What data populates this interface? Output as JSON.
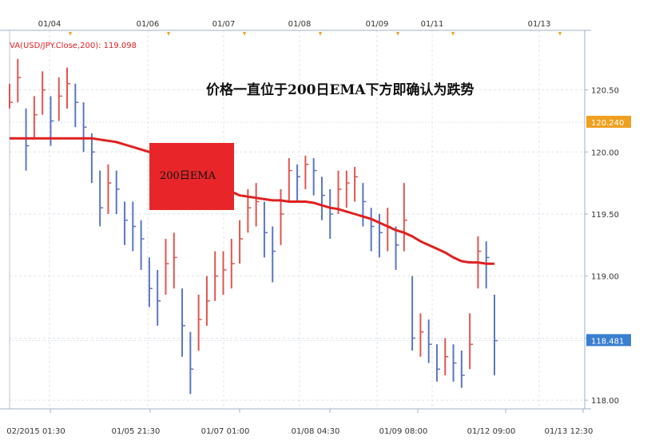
{
  "chart_data": {
    "type": "candlestick",
    "legend": "VA(USD/JPY.Close,200): 119.098",
    "annotation": "价格一直位于200日EMA下方即确认为跌势",
    "box_label": "200日EMA",
    "top_labels": [
      "01/04",
      "01/06",
      "01/07",
      "01/08",
      "01/09",
      "01/11",
      "01/13"
    ],
    "bottom_labels": [
      "02/2015 01:30",
      "01/05 21:30",
      "01/07 01:00",
      "01/08 04:30",
      "01/09 08:00",
      "01/12 09:00",
      "01/13 12:30"
    ],
    "ylim": [
      117.93,
      120.98
    ],
    "yticks": [
      {
        "value": 118,
        "label": "118.00"
      },
      {
        "value": 118.5,
        "label": "118.50"
      },
      {
        "value": 119,
        "label": "119.00"
      },
      {
        "value": 119.5,
        "label": "119.50"
      },
      {
        "value": 120,
        "label": "120.00"
      },
      {
        "value": 120.5,
        "label": "120.50"
      }
    ],
    "grid": true,
    "price": {
      "up_color": "#e0554f",
      "down_color": "#5a76c4",
      "high": [
        120.55,
        120.75,
        120.35,
        120.45,
        120.65,
        120.45,
        120.6,
        120.68,
        120.55,
        120.4,
        120.15,
        119.85,
        119.9,
        119.85,
        119.6,
        119.6,
        119.45,
        119.15,
        119.05,
        119.3,
        119.35,
        118.9,
        118.55,
        118.85,
        119.0,
        119.2,
        119.2,
        119.3,
        119.45,
        119.7,
        119.75,
        119.6,
        119.4,
        119.7,
        119.95,
        119.9,
        119.97,
        119.95,
        119.8,
        119.7,
        119.85,
        119.85,
        119.88,
        119.75,
        119.55,
        119.5,
        119.55,
        119.4,
        119.75,
        119.0,
        118.7,
        118.65,
        118.45,
        118.5,
        118.45,
        118.4,
        118.7,
        119.32,
        119.28,
        118.85
      ],
      "low": [
        120.35,
        120.4,
        119.85,
        120.1,
        120.3,
        120.05,
        120.25,
        120.35,
        120.2,
        120.0,
        119.75,
        119.4,
        119.5,
        119.5,
        119.25,
        119.2,
        119.05,
        118.75,
        118.6,
        118.85,
        118.9,
        118.35,
        118.05,
        118.4,
        118.6,
        118.8,
        118.85,
        118.9,
        119.1,
        119.35,
        119.4,
        119.15,
        118.95,
        119.25,
        119.6,
        119.6,
        119.7,
        119.65,
        119.45,
        119.3,
        119.5,
        119.55,
        119.6,
        119.4,
        119.2,
        119.15,
        119.2,
        119.05,
        119.2,
        118.4,
        118.35,
        118.3,
        118.15,
        118.2,
        118.15,
        118.1,
        118.25,
        118.9,
        118.9,
        118.2
      ],
      "close": [
        120.4,
        120.6,
        120.05,
        120.3,
        120.5,
        120.25,
        120.45,
        120.55,
        120.4,
        120.2,
        120.0,
        119.55,
        119.75,
        119.7,
        119.45,
        119.4,
        119.3,
        118.9,
        118.8,
        119.1,
        119.15,
        118.6,
        118.25,
        118.65,
        118.8,
        119.0,
        119.05,
        119.1,
        119.3,
        119.55,
        119.6,
        119.35,
        119.2,
        119.5,
        119.85,
        119.8,
        119.9,
        119.85,
        119.65,
        119.5,
        119.7,
        119.75,
        119.8,
        119.6,
        119.4,
        119.35,
        119.4,
        119.25,
        119.45,
        118.5,
        118.55,
        118.45,
        118.25,
        118.35,
        118.3,
        118.2,
        118.45,
        119.2,
        119.15,
        118.48
      ]
    },
    "ema": {
      "color": "#e02020",
      "values": [
        120.11,
        120.11,
        120.11,
        120.11,
        120.11,
        120.11,
        120.11,
        120.11,
        120.11,
        120.11,
        120.11,
        120.1,
        120.09,
        120.08,
        120.06,
        120.04,
        120.02,
        120.0,
        119.97,
        119.94,
        119.91,
        119.88,
        119.85,
        119.81,
        119.78,
        119.74,
        119.71,
        119.68,
        119.65,
        119.64,
        119.63,
        119.62,
        119.61,
        119.61,
        119.6,
        119.6,
        119.6,
        119.59,
        119.57,
        119.55,
        119.54,
        119.52,
        119.5,
        119.48,
        119.46,
        119.43,
        119.4,
        119.37,
        119.35,
        119.32,
        119.28,
        119.25,
        119.22,
        119.19,
        119.15,
        119.12,
        119.11,
        119.11,
        119.1,
        119.1
      ]
    },
    "price_tags": [
      {
        "value": 120.24,
        "label": "120.240",
        "color": "#f0a020"
      },
      {
        "value": 118.481,
        "label": "118.481",
        "color": "#3a7fd0"
      }
    ]
  }
}
